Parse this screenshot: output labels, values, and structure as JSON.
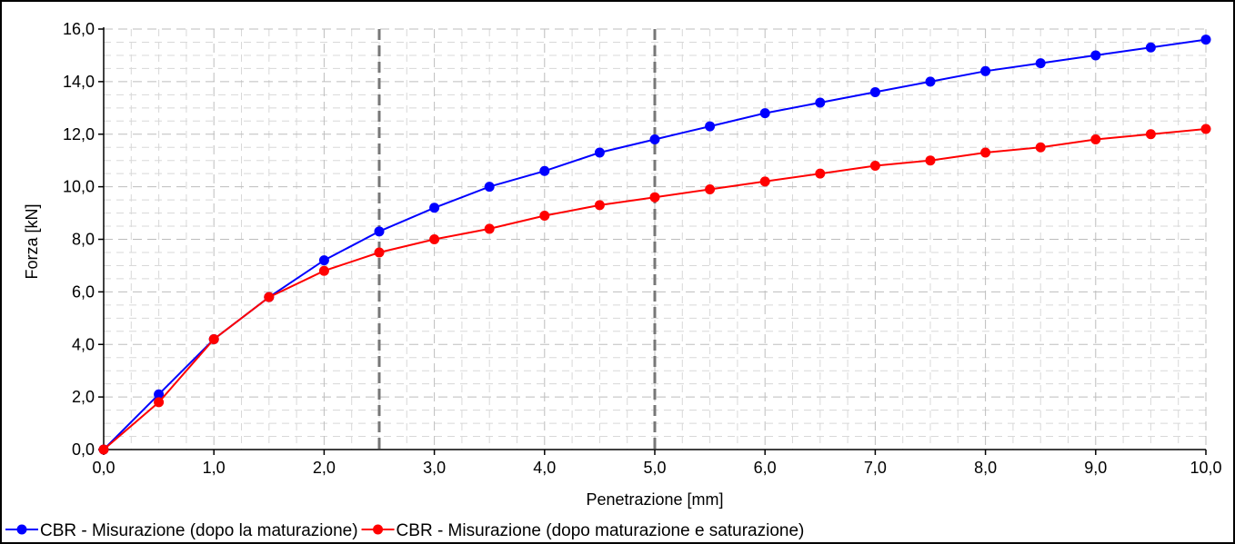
{
  "chart_data": {
    "type": "line",
    "xlabel": "Penetrazione [mm]",
    "ylabel": "Forza [kN]",
    "xlim": [
      0,
      10
    ],
    "ylim": [
      0,
      16
    ],
    "x_ticks": [
      "0,0",
      "1,0",
      "2,0",
      "3,0",
      "4,0",
      "5,0",
      "6,0",
      "7,0",
      "8,0",
      "9,0",
      "10,0"
    ],
    "y_ticks": [
      "0,0",
      "2,0",
      "4,0",
      "6,0",
      "8,0",
      "10,0",
      "12,0",
      "14,0",
      "16,0"
    ],
    "grid": true,
    "legend_position": "bottom",
    "reference_lines_x": [
      2.5,
      5.0
    ],
    "series": [
      {
        "name": "CBR - Misurazione (dopo la maturazione)",
        "color": "#0000ff",
        "x": [
          0,
          0.5,
          1,
          1.5,
          2,
          2.5,
          3,
          3.5,
          4,
          4.5,
          5,
          5.5,
          6,
          6.5,
          7,
          7.5,
          8,
          8.5,
          9,
          9.5,
          10
        ],
        "values": [
          0,
          2.1,
          4.2,
          5.8,
          7.2,
          8.3,
          9.2,
          10.0,
          10.6,
          11.3,
          11.8,
          12.3,
          12.8,
          13.2,
          13.6,
          14.0,
          14.4,
          14.7,
          15.0,
          15.3,
          15.6
        ]
      },
      {
        "name": "CBR - Misurazione (dopo maturazione e saturazione)",
        "color": "#ff0000",
        "x": [
          0,
          0.5,
          1,
          1.5,
          2,
          2.5,
          3,
          3.5,
          4,
          4.5,
          5,
          5.5,
          6,
          6.5,
          7,
          7.5,
          8,
          8.5,
          9,
          9.5,
          10
        ],
        "values": [
          0,
          1.8,
          4.2,
          5.8,
          6.8,
          7.5,
          8.0,
          8.4,
          8.9,
          9.3,
          9.6,
          9.9,
          10.2,
          10.5,
          10.8,
          11.0,
          11.3,
          11.5,
          11.8,
          12.0,
          12.2
        ]
      }
    ]
  }
}
